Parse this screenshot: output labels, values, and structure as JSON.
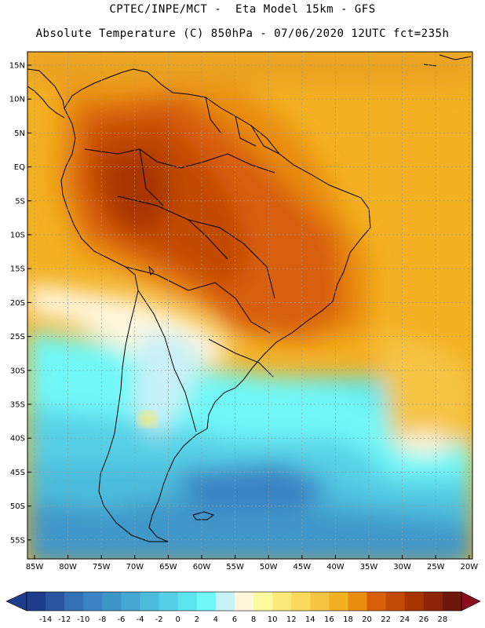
{
  "header": {
    "line1": "CPTEC/INPE/MCT -  Eta Model 15km - GFS",
    "line2": "Absolute Temperature (C) 850hPa - 07/06/2020 12UTC fct=235h"
  },
  "map": {
    "lat_labels": [
      "15N",
      "10N",
      "5N",
      "EQ",
      "5S",
      "10S",
      "15S",
      "20S",
      "25S",
      "30S",
      "35S",
      "40S",
      "45S",
      "50S",
      "55S"
    ],
    "lon_labels": [
      "85W",
      "80W",
      "75W",
      "70W",
      "65W",
      "60W",
      "55W",
      "50W",
      "45W",
      "40W",
      "35W",
      "30W",
      "25W",
      "20W"
    ]
  },
  "legend": {
    "labels": [
      "-14",
      "-12",
      "-10",
      "-8",
      "-6",
      "-4",
      "-2",
      "0",
      "2",
      "4",
      "6",
      "8",
      "10",
      "12",
      "14",
      "16",
      "18",
      "20",
      "22",
      "24",
      "26",
      "28"
    ],
    "colors": [
      "#1e3c8c",
      "#2a55a0",
      "#3370b4",
      "#3b83c3",
      "#3f97c9",
      "#44a8d3",
      "#4bbcdc",
      "#56d0e6",
      "#5ce4ee",
      "#70f7f7",
      "#c8f1f8",
      "#fff6dc",
      "#fefaa0",
      "#fbe97a",
      "#fbd95a",
      "#f5c442",
      "#f3b021",
      "#e98c10",
      "#d85f07",
      "#c24a04",
      "#a93403",
      "#8e2509",
      "#6d180a"
    ]
  }
}
